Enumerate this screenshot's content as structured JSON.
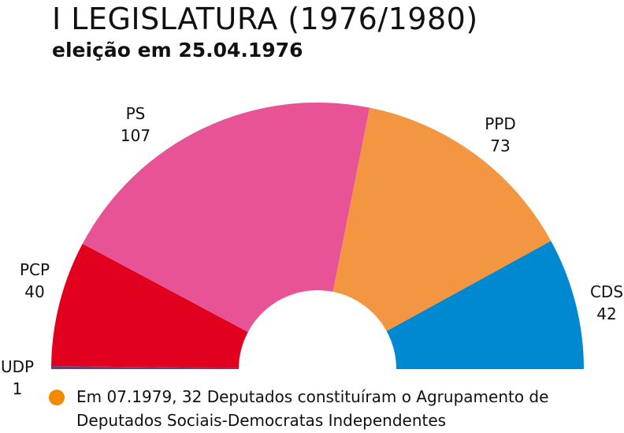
{
  "title": "I LEGISLATURA (1976/1980)",
  "subtitle": "eleição em 25.04.1976",
  "chart_data": {
    "type": "pie",
    "variant": "semicircle-parliament",
    "total": 263,
    "parties": [
      {
        "name": "UDP",
        "seats": 1,
        "color": "#6b3d7d"
      },
      {
        "name": "PCP",
        "seats": 40,
        "color": "#e2001f"
      },
      {
        "name": "PS",
        "seats": 107,
        "color": "#e85396"
      },
      {
        "name": "PPD",
        "seats": 73,
        "color": "#f29641"
      },
      {
        "name": "CDS",
        "seats": 42,
        "color": "#0088d1"
      }
    ]
  },
  "note": {
    "color": "#f08a00",
    "line1": "Em 07.1979, 32 Deputados constituíram o Agrupamento de",
    "line2": "Deputados Sociais-Democratas Independentes"
  }
}
